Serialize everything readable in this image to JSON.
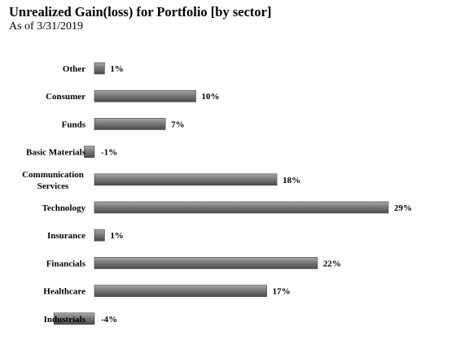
{
  "header": {
    "title": "Unrealized Gain(loss) for Portfolio [by sector]",
    "subtitle": "As of 3/31/2019"
  },
  "chart_data": {
    "type": "bar",
    "orientation": "horizontal",
    "categories": [
      "Other",
      "Consumer",
      "Funds",
      "Basic Materials",
      "Communication Services",
      "Technology",
      "Insurance",
      "Financials",
      "Healthcare",
      "Industrials"
    ],
    "values": [
      1,
      10,
      7,
      -1,
      18,
      29,
      1,
      22,
      17,
      -4
    ],
    "value_labels": [
      "1%",
      "10%",
      "7%",
      "-1%",
      "18%",
      "29%",
      "1%",
      "22%",
      "17%",
      "-4%"
    ],
    "unit": "%",
    "title": "Unrealized Gain(loss) for Portfolio [by sector]",
    "subtitle": "As of 3/31/2019",
    "xlim": [
      -4,
      29
    ],
    "grid": false,
    "legend": "none",
    "bar_color": "#7f7f7f"
  }
}
